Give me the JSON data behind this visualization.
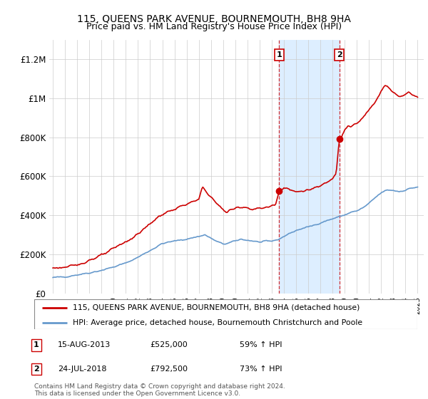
{
  "title": "115, QUEENS PARK AVENUE, BOURNEMOUTH, BH8 9HA",
  "subtitle": "Price paid vs. HM Land Registry's House Price Index (HPI)",
  "legend_line1": "115, QUEENS PARK AVENUE, BOURNEMOUTH, BH8 9HA (detached house)",
  "legend_line2": "HPI: Average price, detached house, Bournemouth Christchurch and Poole",
  "annotation1_label": "1",
  "annotation1_date": "15-AUG-2013",
  "annotation1_price": "£525,000",
  "annotation1_hpi": "59% ↑ HPI",
  "annotation2_label": "2",
  "annotation2_date": "24-JUL-2018",
  "annotation2_price": "£792,500",
  "annotation2_hpi": "73% ↑ HPI",
  "footer": "Contains HM Land Registry data © Crown copyright and database right 2024.\nThis data is licensed under the Open Government Licence v3.0.",
  "ylim": [
    0,
    1300000
  ],
  "yticks": [
    0,
    200000,
    400000,
    600000,
    800000,
    1000000,
    1200000
  ],
  "ytick_labels": [
    "£0",
    "£200K",
    "£400K",
    "£600K",
    "£800K",
    "£1M",
    "£1.2M"
  ],
  "red_color": "#cc0000",
  "blue_color": "#6699cc",
  "shaded_color": "#ddeeff",
  "purchase1_x": 2013.62,
  "purchase1_y": 525000,
  "purchase2_x": 2018.55,
  "purchase2_y": 792500,
  "xlim_left": 1995.0,
  "xlim_right": 2025.5
}
